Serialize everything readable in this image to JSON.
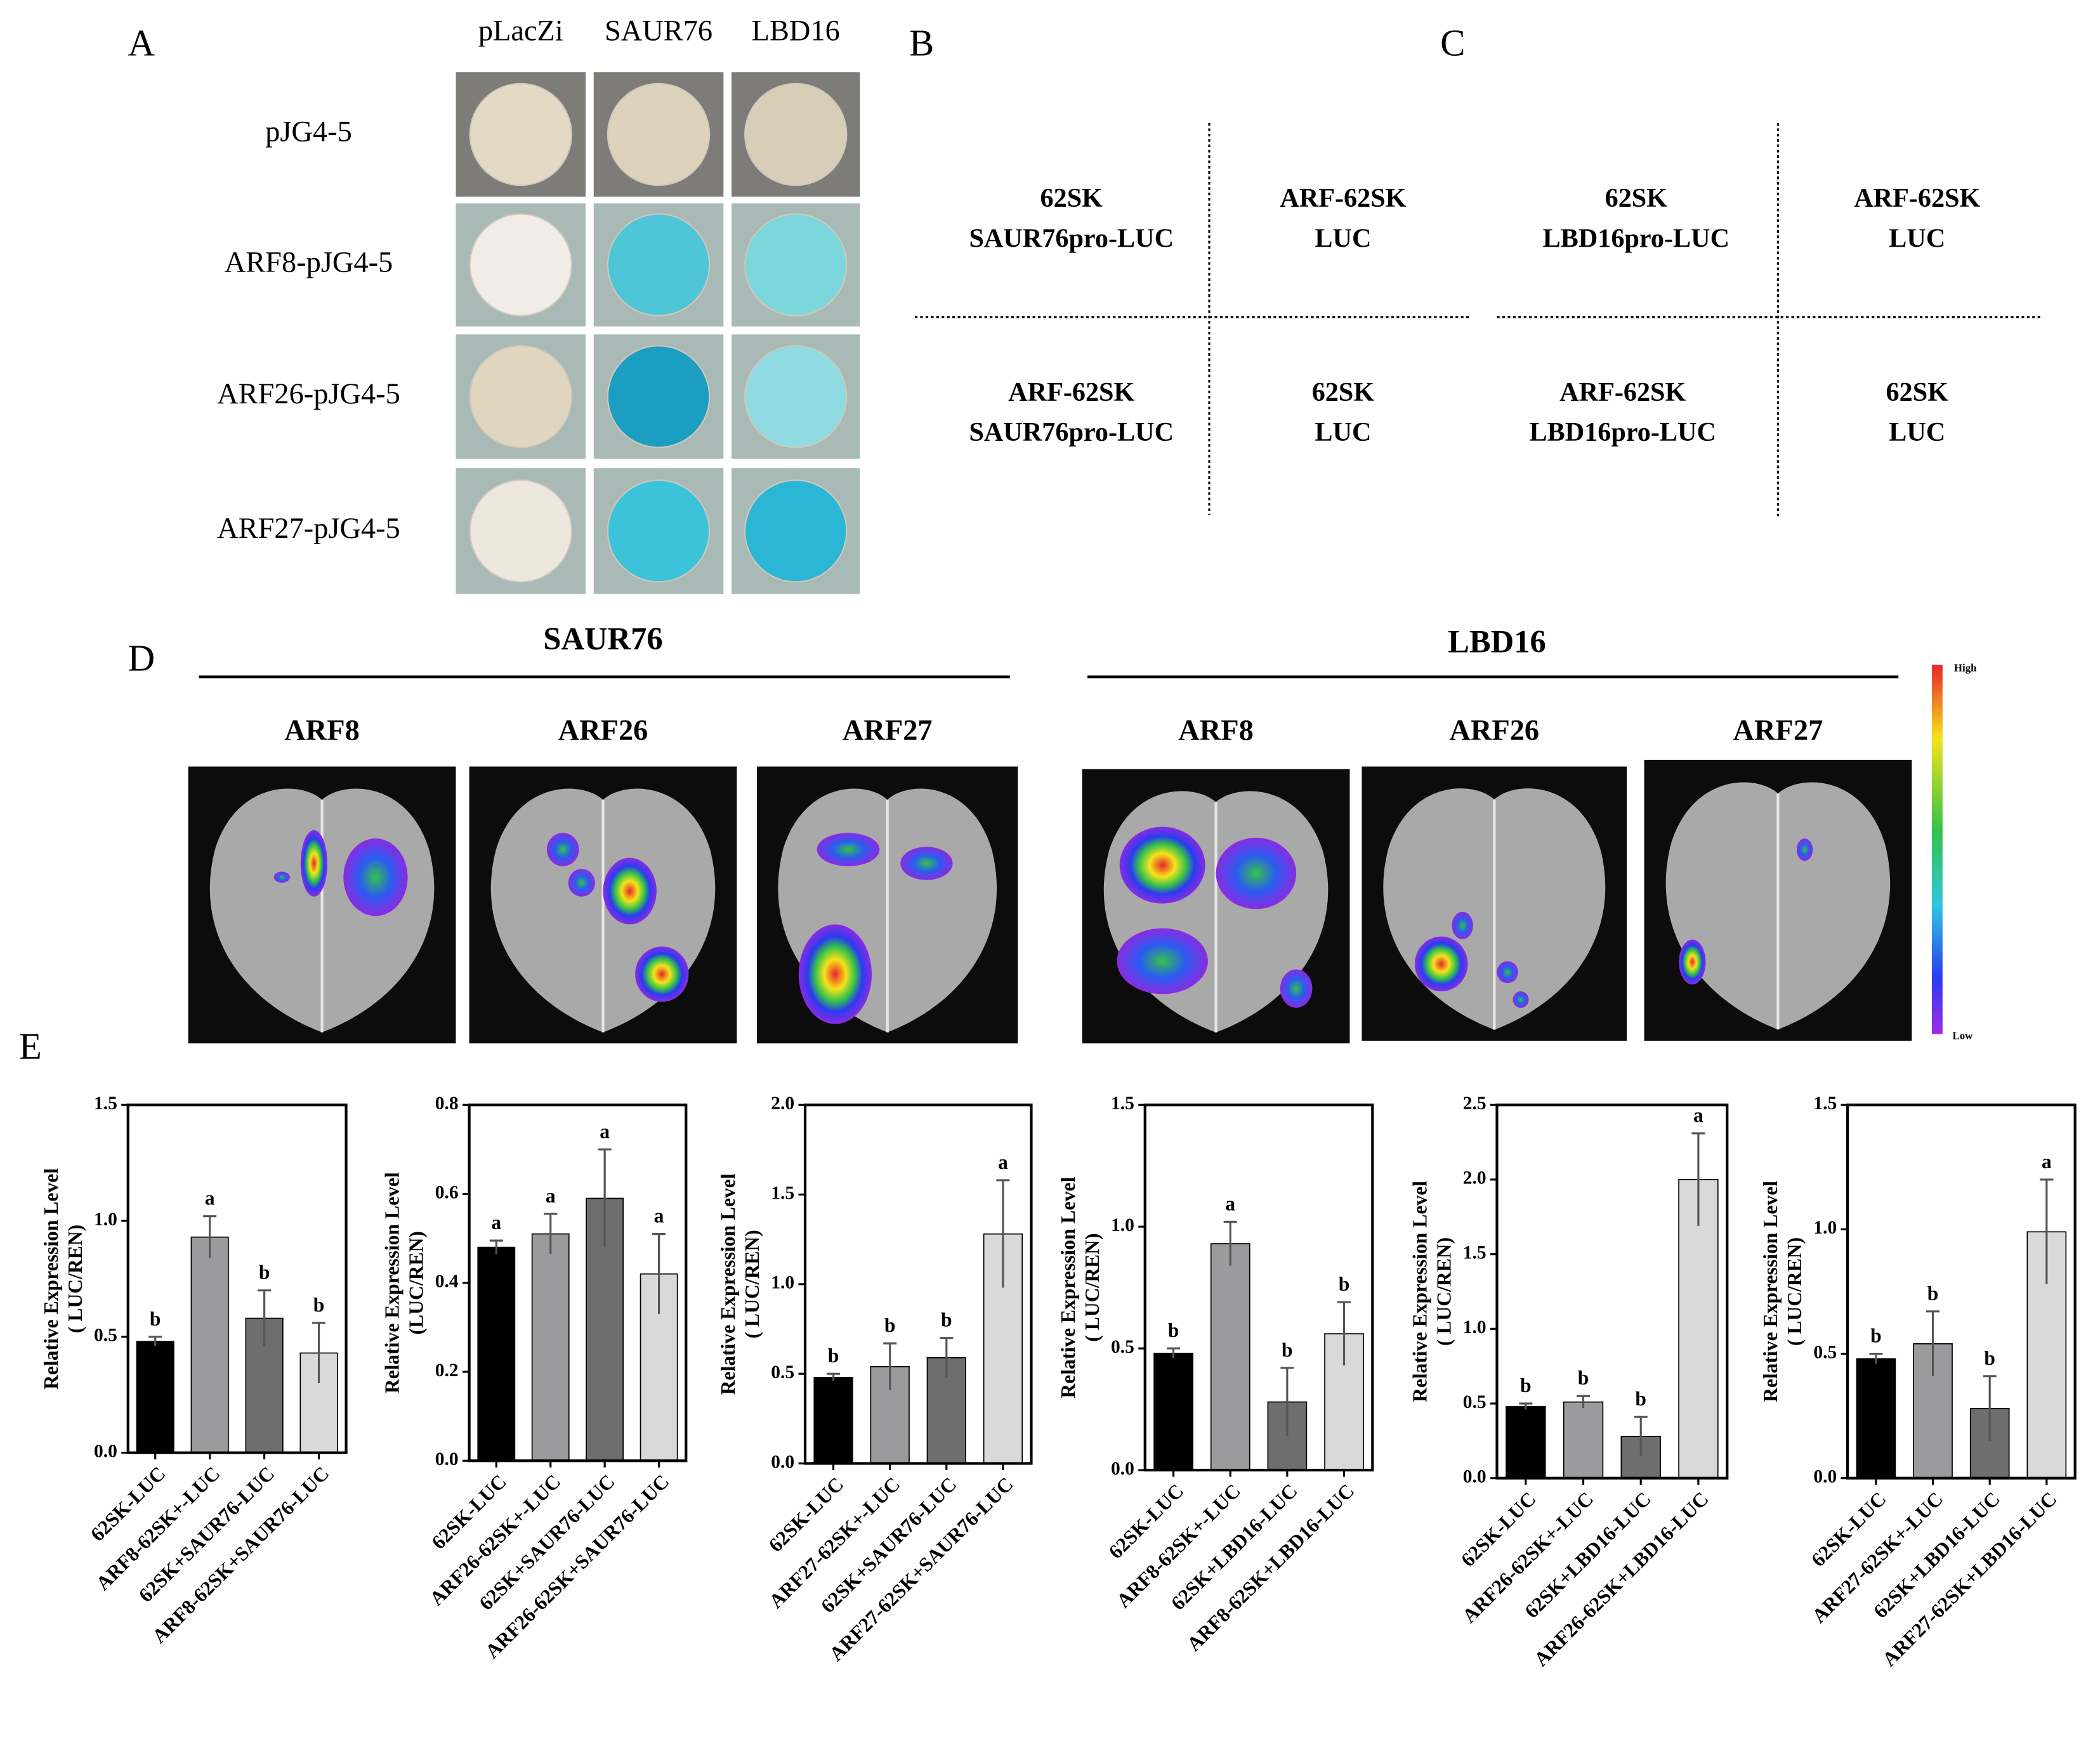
{
  "panel_labels": [
    "A",
    "B",
    "C",
    "D",
    "E"
  ],
  "panel_a": {
    "columns": [
      "pLacZi",
      "SAUR76",
      "LBD16"
    ],
    "rows": [
      "pJG4-5",
      "ARF8-pJG4-5",
      "ARF26-pJG4-5",
      "ARF27-pJG4-5"
    ]
  },
  "panel_b": {
    "cells": [
      [
        "62SK",
        "SAUR76pro-LUC"
      ],
      [
        "ARF-62SK",
        "LUC"
      ],
      [
        "ARF-62SK",
        "SAUR76pro-LUC"
      ],
      [
        "62SK",
        "LUC"
      ]
    ]
  },
  "panel_c": {
    "cells": [
      [
        "62SK",
        "LBD16pro-LUC"
      ],
      [
        "ARF-62SK",
        "LUC"
      ],
      [
        "ARF-62SK",
        "LBD16pro-LUC"
      ],
      [
        "62SK",
        "LUC"
      ]
    ]
  },
  "panel_d": {
    "groups": [
      {
        "title": "SAUR76",
        "leaves": [
          "ARF8",
          "ARF26",
          "ARF27"
        ]
      },
      {
        "title": "LBD16",
        "leaves": [
          "ARF8",
          "ARF26",
          "ARF27"
        ]
      }
    ],
    "colorbar": {
      "high": "High",
      "low": "Low"
    }
  },
  "chart_data": [
    {
      "type": "bar",
      "ylabel": [
        "Relative Expression Level",
        "( LUC/REN)"
      ],
      "categories": [
        "62SK-LUC",
        "ARF8-62SK+-LUC",
        "62SK+SAUR76-LUC",
        "ARF8-62SK+SAUR76-LUC"
      ],
      "values": [
        0.48,
        0.93,
        0.58,
        0.43
      ],
      "errors": [
        0.02,
        0.09,
        0.12,
        0.13
      ],
      "annotations": [
        "b",
        "a",
        "b",
        "b"
      ],
      "colors": [
        "#000000",
        "#9b9b9d",
        "#6e6e6e",
        "#d9d9d9"
      ],
      "ylim": [
        0,
        1.5
      ],
      "yticks": [
        {
          "value": 0,
          "label": "0.0"
        },
        0.5,
        {
          "value": 1,
          "label": "1.0"
        },
        1.5
      ]
    },
    {
      "type": "bar",
      "ylabel": [
        "Relative Expression Level",
        "(LUC/REN)"
      ],
      "categories": [
        "62SK-LUC",
        "ARF26-62SK+-LUC",
        "62SK+SAUR76-LUC",
        "ARF26-62SK+SAUR76-LUC"
      ],
      "values": [
        0.48,
        0.51,
        0.59,
        0.42
      ],
      "errors": [
        0.015,
        0.045,
        0.11,
        0.09
      ],
      "annotations": [
        "a",
        "a",
        "a",
        "a"
      ],
      "colors": [
        "#000000",
        "#9b9b9d",
        "#6e6e6e",
        "#d9d9d9"
      ],
      "ylim": [
        0,
        0.8
      ],
      "yticks": [
        {
          "value": 0,
          "label": "0.0"
        },
        0.2,
        0.4,
        0.6,
        0.8
      ]
    },
    {
      "type": "bar",
      "ylabel": [
        "Relative Expression Level",
        "( LUC/REN)"
      ],
      "categories": [
        "62SK-LUC",
        "ARF27-62SK+-LUC",
        "62SK+SAUR76-LUC",
        "ARF27-62SK+SAUR76-LUC"
      ],
      "values": [
        0.48,
        0.54,
        0.59,
        1.28
      ],
      "errors": [
        0.02,
        0.13,
        0.11,
        0.3
      ],
      "annotations": [
        "b",
        "b",
        "b",
        "a"
      ],
      "colors": [
        "#000000",
        "#9b9b9d",
        "#6e6e6e",
        "#d9d9d9"
      ],
      "ylim": [
        0,
        2
      ],
      "yticks": [
        {
          "value": 0,
          "label": "0.0"
        },
        0.5,
        {
          "value": 1,
          "label": "1.0"
        },
        1.5,
        {
          "value": 2,
          "label": "2.0"
        }
      ]
    },
    {
      "type": "bar",
      "ylabel": [
        "Relative Expression Level",
        "( LUC/REN)"
      ],
      "categories": [
        "62SK-LUC",
        "ARF8-62SK+-LUC",
        "62SK+LBD16-LUC",
        "ARF8-62SK+LBD16-LUC"
      ],
      "values": [
        0.48,
        0.93,
        0.28,
        0.56
      ],
      "errors": [
        0.02,
        0.09,
        0.14,
        0.13
      ],
      "annotations": [
        "b",
        "a",
        "b",
        "b"
      ],
      "colors": [
        "#000000",
        "#9b9b9d",
        "#6e6e6e",
        "#d9d9d9"
      ],
      "ylim": [
        0,
        1.5
      ],
      "yticks": [
        {
          "value": 0,
          "label": "0.0"
        },
        0.5,
        {
          "value": 1,
          "label": "1.0"
        },
        1.5
      ]
    },
    {
      "type": "bar",
      "ylabel": [
        "Relative Expression Level",
        "( LUC/REN)"
      ],
      "categories": [
        "62SK-LUC",
        "ARF26-62SK+-LUC",
        "62SK+LBD16-LUC",
        "ARF26-62SK+LBD16-LUC"
      ],
      "values": [
        0.48,
        0.51,
        0.28,
        2.0
      ],
      "errors": [
        0.02,
        0.04,
        0.13,
        0.31
      ],
      "annotations": [
        "b",
        "b",
        "b",
        "a"
      ],
      "colors": [
        "#000000",
        "#9b9b9d",
        "#6e6e6e",
        "#d9d9d9"
      ],
      "ylim": [
        0,
        2.5
      ],
      "yticks": [
        {
          "value": 0,
          "label": "0.0"
        },
        0.5,
        {
          "value": 1,
          "label": "1.0"
        },
        1.5,
        {
          "value": 2,
          "label": "2.0"
        },
        2.5
      ]
    },
    {
      "type": "bar",
      "ylabel": [
        "Relative Expression Level",
        "( LUC/REN)"
      ],
      "categories": [
        "62SK-LUC",
        "ARF27-62SK+-LUC",
        "62SK+LBD16-LUC",
        "ARF27-62SK+LBD16-LUC"
      ],
      "values": [
        0.48,
        0.54,
        0.28,
        0.99
      ],
      "errors": [
        0.02,
        0.13,
        0.13,
        0.21
      ],
      "annotations": [
        "b",
        "b",
        "b",
        "a"
      ],
      "colors": [
        "#000000",
        "#9b9b9d",
        "#6e6e6e",
        "#d9d9d9"
      ],
      "ylim": [
        0,
        1.5
      ],
      "yticks": [
        {
          "value": 0,
          "label": "0.0"
        },
        0.5,
        {
          "value": 1,
          "label": "1.0"
        },
        1.5
      ]
    }
  ]
}
